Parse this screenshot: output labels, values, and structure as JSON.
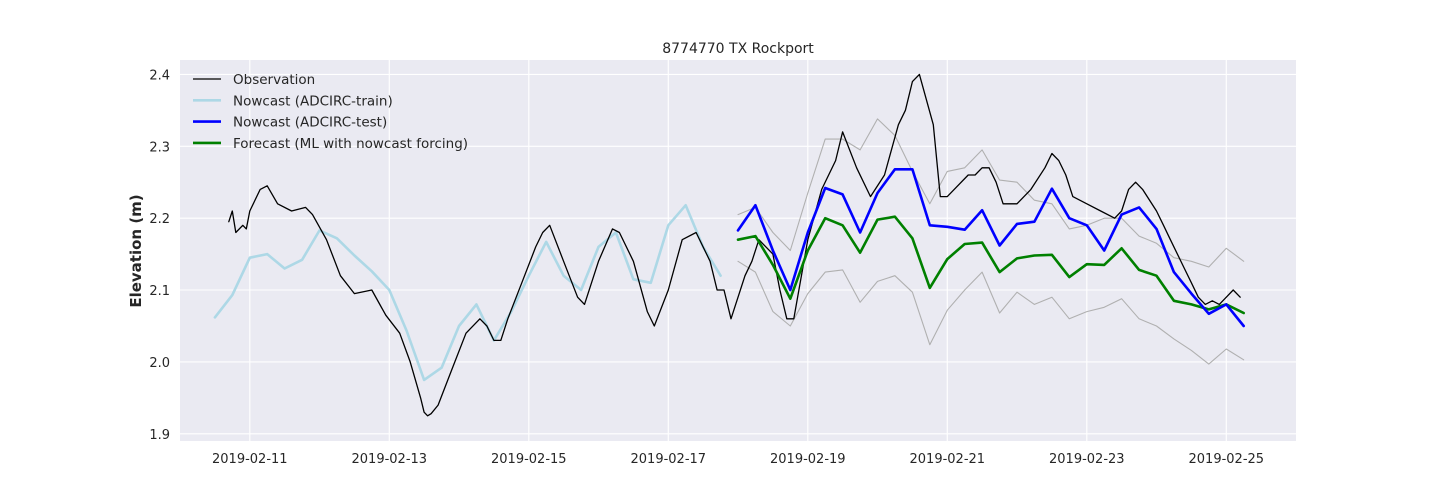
{
  "chart_data": {
    "type": "line",
    "title": "8774770 TX Rockport",
    "xlabel": "",
    "ylabel": "Elevation (m)",
    "x_unit": "date (UTC, 2019-02)",
    "xlim": [
      "2019-02-10T00:00",
      "2019-02-26T00:00"
    ],
    "ylim": [
      1.89,
      2.42
    ],
    "x_ticks": [
      "2019-02-11",
      "2019-02-13",
      "2019-02-15",
      "2019-02-17",
      "2019-02-19",
      "2019-02-21",
      "2019-02-23",
      "2019-02-25"
    ],
    "y_ticks": [
      1.9,
      2.0,
      2.1,
      2.2,
      2.3,
      2.4
    ],
    "y_tick_labels": [
      "1.9",
      "2.0",
      "2.1",
      "2.2",
      "2.3",
      "2.4"
    ],
    "grid": true,
    "legend_position": "top-left",
    "background_color": "#eaeaf2",
    "series": [
      {
        "name": "Observation",
        "color": "#000000",
        "line_width": 1.3,
        "x": [
          "2019-02-10T16:48",
          "2019-02-10T18:00",
          "2019-02-10T19:12",
          "2019-02-10T21:36",
          "2019-02-10T22:48",
          "2019-02-11T00:00",
          "2019-02-11T03:36",
          "2019-02-11T06:00",
          "2019-02-11T09:36",
          "2019-02-11T14:24",
          "2019-02-11T19:12",
          "2019-02-11T21:36",
          "2019-02-12T02:24",
          "2019-02-12T07:12",
          "2019-02-12T12:00",
          "2019-02-12T18:00",
          "2019-02-12T22:48",
          "2019-02-13T03:36",
          "2019-02-13T07:12",
          "2019-02-13T10:48",
          "2019-02-13T12:00",
          "2019-02-13T13:12",
          "2019-02-13T14:24",
          "2019-02-13T16:48",
          "2019-02-13T21:36",
          "2019-02-14T02:24",
          "2019-02-14T07:12",
          "2019-02-14T09:36",
          "2019-02-14T12:00",
          "2019-02-14T14:24",
          "2019-02-14T16:48",
          "2019-02-14T21:36",
          "2019-02-15T02:24",
          "2019-02-15T04:48",
          "2019-02-15T07:12",
          "2019-02-15T12:00",
          "2019-02-15T16:48",
          "2019-02-15T19:12",
          "2019-02-16T00:00",
          "2019-02-16T04:48",
          "2019-02-16T07:12",
          "2019-02-16T12:00",
          "2019-02-16T16:48",
          "2019-02-16T19:12",
          "2019-02-17T00:00",
          "2019-02-17T04:48",
          "2019-02-17T09:36",
          "2019-02-17T14:24",
          "2019-02-17T16:48",
          "2019-02-17T19:12",
          "2019-02-17T21:36",
          "2019-02-18T02:24",
          "2019-02-18T04:48",
          "2019-02-18T07:12",
          "2019-02-18T12:00",
          "2019-02-18T14:24",
          "2019-02-18T16:48",
          "2019-02-18T19:12",
          "2019-02-19T00:00",
          "2019-02-19T04:48",
          "2019-02-19T09:36",
          "2019-02-19T12:00",
          "2019-02-19T16:48",
          "2019-02-19T21:36",
          "2019-02-20T02:24",
          "2019-02-20T07:12",
          "2019-02-20T09:36",
          "2019-02-20T12:00",
          "2019-02-20T14:24",
          "2019-02-20T19:12",
          "2019-02-20T21:36",
          "2019-02-21T00:00",
          "2019-02-21T02:24",
          "2019-02-21T07:12",
          "2019-02-21T09:36",
          "2019-02-21T12:00",
          "2019-02-21T14:24",
          "2019-02-21T16:48",
          "2019-02-21T19:12",
          "2019-02-22T00:00",
          "2019-02-22T04:48",
          "2019-02-22T09:36",
          "2019-02-22T12:00",
          "2019-02-22T14:24",
          "2019-02-22T16:48",
          "2019-02-22T19:12",
          "2019-02-23T00:00",
          "2019-02-23T04:48",
          "2019-02-23T09:36",
          "2019-02-23T12:00",
          "2019-02-23T14:24",
          "2019-02-23T16:48",
          "2019-02-23T19:12",
          "2019-02-24T00:00",
          "2019-02-24T02:24",
          "2019-02-24T04:48",
          "2019-02-24T09:36",
          "2019-02-24T12:00",
          "2019-02-24T14:24",
          "2019-02-24T16:48",
          "2019-02-24T19:12",
          "2019-02-24T21:36",
          "2019-02-25T00:00",
          "2019-02-25T02:24",
          "2019-02-25T04:48"
        ],
        "y": [
          2.195,
          2.21,
          2.18,
          2.19,
          2.185,
          2.21,
          2.24,
          2.245,
          2.22,
          2.21,
          2.215,
          2.205,
          2.17,
          2.12,
          2.095,
          2.1,
          2.065,
          2.04,
          2.0,
          1.95,
          1.93,
          1.925,
          1.928,
          1.94,
          1.99,
          2.04,
          2.06,
          2.05,
          2.03,
          2.03,
          2.06,
          2.11,
          2.16,
          2.18,
          2.19,
          2.14,
          2.09,
          2.08,
          2.14,
          2.185,
          2.18,
          2.14,
          2.07,
          2.05,
          2.1,
          2.17,
          2.18,
          2.14,
          2.1,
          2.1,
          2.06,
          2.12,
          2.14,
          2.17,
          2.15,
          2.1,
          2.06,
          2.06,
          2.17,
          2.24,
          2.28,
          2.32,
          2.27,
          2.23,
          2.26,
          2.33,
          2.35,
          2.39,
          2.4,
          2.33,
          2.23,
          2.23,
          2.24,
          2.26,
          2.26,
          2.27,
          2.27,
          2.25,
          2.22,
          2.22,
          2.24,
          2.27,
          2.29,
          2.28,
          2.26,
          2.23,
          2.22,
          2.21,
          2.2,
          2.21,
          2.24,
          2.25,
          2.24,
          2.21,
          2.19,
          2.17,
          2.13,
          2.11,
          2.09,
          2.08,
          2.085,
          2.08,
          2.09,
          2.1,
          2.09
        ]
      },
      {
        "name": "Nowcast (ADCIRC-train)",
        "color": "#add8e6",
        "line_width": 2.6,
        "x": [
          "2019-02-10T12:00",
          "2019-02-10T18:00",
          "2019-02-11T00:00",
          "2019-02-11T06:00",
          "2019-02-11T12:00",
          "2019-02-11T18:00",
          "2019-02-12T00:00",
          "2019-02-12T06:00",
          "2019-02-12T12:00",
          "2019-02-12T18:00",
          "2019-02-13T00:00",
          "2019-02-13T06:00",
          "2019-02-13T12:00",
          "2019-02-13T18:00",
          "2019-02-14T00:00",
          "2019-02-14T06:00",
          "2019-02-14T12:00",
          "2019-02-14T18:00",
          "2019-02-15T00:00",
          "2019-02-15T06:00",
          "2019-02-15T12:00",
          "2019-02-15T18:00",
          "2019-02-16T00:00",
          "2019-02-16T06:00",
          "2019-02-16T12:00",
          "2019-02-16T18:00",
          "2019-02-17T00:00",
          "2019-02-17T06:00",
          "2019-02-17T12:00",
          "2019-02-17T18:00"
        ],
        "y": [
          2.062,
          2.093,
          2.145,
          2.15,
          2.13,
          2.142,
          2.183,
          2.172,
          2.148,
          2.126,
          2.1,
          2.043,
          1.975,
          1.992,
          2.05,
          2.08,
          2.03,
          2.07,
          2.12,
          2.167,
          2.12,
          2.1,
          2.16,
          2.18,
          2.115,
          2.11,
          2.19,
          2.218,
          2.16,
          2.12
        ]
      },
      {
        "name": "Nowcast (ADCIRC-test)",
        "color": "#0000ff",
        "line_width": 2.6,
        "x": [
          "2019-02-18T00:00",
          "2019-02-18T06:00",
          "2019-02-18T12:00",
          "2019-02-18T18:00",
          "2019-02-19T00:00",
          "2019-02-19T06:00",
          "2019-02-19T12:00",
          "2019-02-19T18:00",
          "2019-02-20T00:00",
          "2019-02-20T06:00",
          "2019-02-20T12:00",
          "2019-02-20T18:00",
          "2019-02-21T00:00",
          "2019-02-21T06:00",
          "2019-02-21T12:00",
          "2019-02-21T18:00",
          "2019-02-22T00:00",
          "2019-02-22T06:00",
          "2019-02-22T12:00",
          "2019-02-22T18:00",
          "2019-02-23T00:00",
          "2019-02-23T06:00",
          "2019-02-23T12:00",
          "2019-02-23T18:00",
          "2019-02-24T00:00",
          "2019-02-24T06:00",
          "2019-02-24T12:00",
          "2019-02-24T18:00",
          "2019-02-25T00:00",
          "2019-02-25T06:00"
        ],
        "y": [
          2.183,
          2.218,
          2.155,
          2.1,
          2.18,
          2.242,
          2.233,
          2.18,
          2.235,
          2.268,
          2.268,
          2.19,
          2.188,
          2.184,
          2.211,
          2.162,
          2.192,
          2.195,
          2.241,
          2.2,
          2.19,
          2.155,
          2.205,
          2.215,
          2.185,
          2.125,
          2.095,
          2.067,
          2.08,
          2.05
        ]
      },
      {
        "name": "Forecast (ML with nowcast forcing)",
        "color": "#008000",
        "line_width": 2.6,
        "x": [
          "2019-02-18T00:00",
          "2019-02-18T06:00",
          "2019-02-18T12:00",
          "2019-02-18T18:00",
          "2019-02-19T00:00",
          "2019-02-19T06:00",
          "2019-02-19T12:00",
          "2019-02-19T18:00",
          "2019-02-20T00:00",
          "2019-02-20T06:00",
          "2019-02-20T12:00",
          "2019-02-20T18:00",
          "2019-02-21T00:00",
          "2019-02-21T06:00",
          "2019-02-21T12:00",
          "2019-02-21T18:00",
          "2019-02-22T00:00",
          "2019-02-22T06:00",
          "2019-02-22T12:00",
          "2019-02-22T18:00",
          "2019-02-23T00:00",
          "2019-02-23T06:00",
          "2019-02-23T12:00",
          "2019-02-23T18:00",
          "2019-02-24T00:00",
          "2019-02-24T06:00",
          "2019-02-24T12:00",
          "2019-02-24T18:00",
          "2019-02-25T00:00",
          "2019-02-25T06:00"
        ],
        "y": [
          2.17,
          2.175,
          2.135,
          2.088,
          2.155,
          2.2,
          2.19,
          2.152,
          2.198,
          2.202,
          2.172,
          2.103,
          2.143,
          2.164,
          2.166,
          2.125,
          2.144,
          2.148,
          2.149,
          2.118,
          2.136,
          2.135,
          2.158,
          2.128,
          2.12,
          2.085,
          2.08,
          2.073,
          2.08,
          2.068
        ]
      },
      {
        "name": "",
        "color": "#b0b0b0",
        "line_width": 1.1,
        "x": [
          "2019-02-18T00:00",
          "2019-02-18T06:00",
          "2019-02-18T12:00",
          "2019-02-18T18:00",
          "2019-02-19T00:00",
          "2019-02-19T06:00",
          "2019-02-19T12:00",
          "2019-02-19T18:00",
          "2019-02-20T00:00",
          "2019-02-20T06:00",
          "2019-02-20T12:00",
          "2019-02-20T18:00",
          "2019-02-21T00:00",
          "2019-02-21T06:00",
          "2019-02-21T12:00",
          "2019-02-21T18:00",
          "2019-02-22T00:00",
          "2019-02-22T06:00",
          "2019-02-22T12:00",
          "2019-02-22T18:00",
          "2019-02-23T00:00",
          "2019-02-23T06:00",
          "2019-02-23T12:00",
          "2019-02-23T18:00",
          "2019-02-24T00:00",
          "2019-02-24T06:00",
          "2019-02-24T12:00",
          "2019-02-24T18:00",
          "2019-02-25T00:00",
          "2019-02-25T06:00"
        ],
        "y": [
          2.205,
          2.215,
          2.18,
          2.155,
          2.235,
          2.31,
          2.31,
          2.295,
          2.338,
          2.315,
          2.265,
          2.22,
          2.265,
          2.27,
          2.295,
          2.253,
          2.25,
          2.225,
          2.22,
          2.185,
          2.19,
          2.2,
          2.2,
          2.175,
          2.165,
          2.145,
          2.14,
          2.132,
          2.158,
          2.14
        ]
      },
      {
        "name": "",
        "color": "#b0b0b0",
        "line_width": 1.1,
        "x": [
          "2019-02-18T00:00",
          "2019-02-18T06:00",
          "2019-02-18T12:00",
          "2019-02-18T18:00",
          "2019-02-19T00:00",
          "2019-02-19T06:00",
          "2019-02-19T12:00",
          "2019-02-19T18:00",
          "2019-02-20T00:00",
          "2019-02-20T06:00",
          "2019-02-20T12:00",
          "2019-02-20T18:00",
          "2019-02-21T00:00",
          "2019-02-21T06:00",
          "2019-02-21T12:00",
          "2019-02-21T18:00",
          "2019-02-22T00:00",
          "2019-02-22T06:00",
          "2019-02-22T12:00",
          "2019-02-22T18:00",
          "2019-02-23T00:00",
          "2019-02-23T06:00",
          "2019-02-23T12:00",
          "2019-02-23T18:00",
          "2019-02-24T00:00",
          "2019-02-24T06:00",
          "2019-02-24T12:00",
          "2019-02-24T18:00",
          "2019-02-25T00:00",
          "2019-02-25T06:00"
        ],
        "y": [
          2.14,
          2.125,
          2.07,
          2.05,
          2.095,
          2.125,
          2.128,
          2.083,
          2.112,
          2.12,
          2.097,
          2.024,
          2.072,
          2.1,
          2.125,
          2.068,
          2.097,
          2.08,
          2.09,
          2.06,
          2.07,
          2.076,
          2.088,
          2.06,
          2.05,
          2.032,
          2.016,
          1.997,
          2.018,
          2.003
        ]
      }
    ]
  }
}
